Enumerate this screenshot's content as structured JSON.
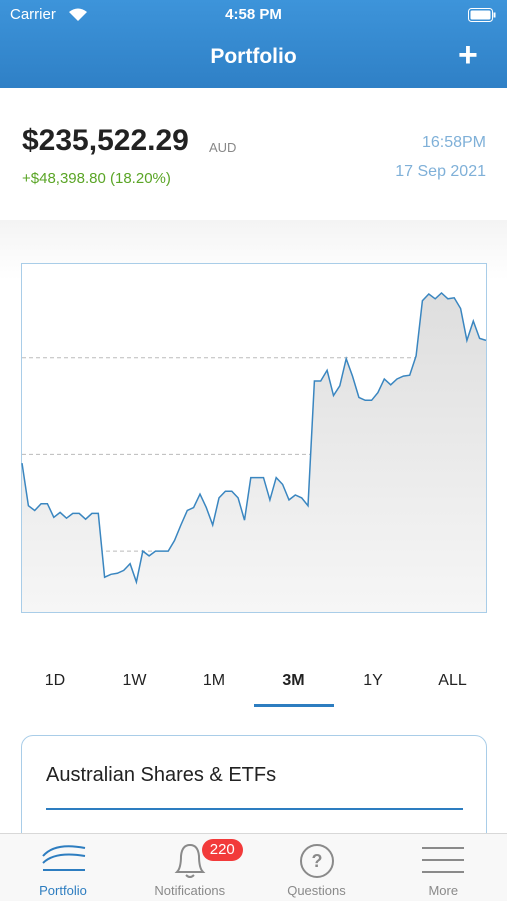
{
  "status_bar": {
    "carrier": "Carrier",
    "time": "4:58 PM"
  },
  "header": {
    "title": "Portfolio",
    "action": "+"
  },
  "summary": {
    "value": "$235,522.29",
    "currency": "AUD",
    "change": "+$48,398.80 (18.20%)",
    "time": "16:58PM",
    "date": "17 Sep 2021"
  },
  "chart_data": {
    "type": "line",
    "color": "#3a86c0",
    "grid": true,
    "ylim": [
      -0.63,
      2.97
    ],
    "yticks": [
      0,
      1,
      2
    ],
    "values": [
      0.91,
      0.47,
      0.42,
      0.49,
      0.49,
      0.35,
      0.4,
      0.34,
      0.39,
      0.39,
      0.33,
      0.39,
      0.39,
      -0.27,
      -0.24,
      -0.23,
      -0.2,
      -0.13,
      -0.32,
      0,
      -0.05,
      0,
      0,
      0,
      0.11,
      0.27,
      0.42,
      0.45,
      0.59,
      0.45,
      0.27,
      0.55,
      0.62,
      0.62,
      0.55,
      0.32,
      0.76,
      0.76,
      0.76,
      0.53,
      0.76,
      0.69,
      0.53,
      0.58,
      0.55,
      0.47,
      1.76,
      1.76,
      1.87,
      1.61,
      1.71,
      1.99,
      1.81,
      1.59,
      1.56,
      1.56,
      1.64,
      1.78,
      1.72,
      1.78,
      1.81,
      1.82,
      2.02,
      2.59,
      2.66,
      2.61,
      2.67,
      2.61,
      2.62,
      2.51,
      2.18,
      2.38,
      2.2,
      2.18
    ]
  },
  "ranges": {
    "options": [
      "1D",
      "1W",
      "1M",
      "3M",
      "1Y",
      "ALL"
    ],
    "selected": "3M"
  },
  "card": {
    "title": "Australian Shares & ETFs"
  },
  "tab_bar": {
    "items": [
      {
        "label": "Portfolio"
      },
      {
        "label": "Notifications",
        "badge": "220"
      },
      {
        "label": "Questions"
      },
      {
        "label": "More"
      }
    ],
    "selected": "Portfolio"
  }
}
